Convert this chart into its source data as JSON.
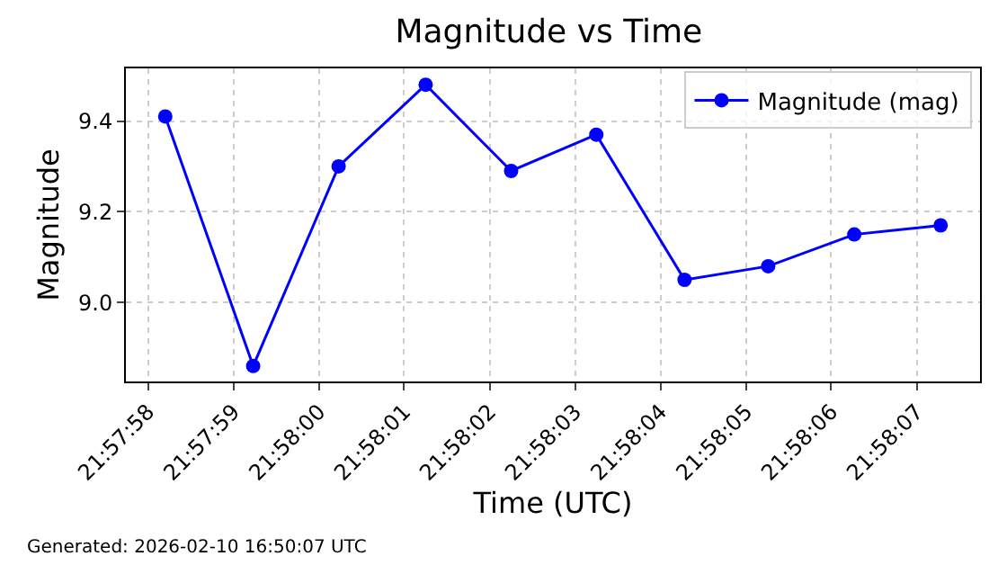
{
  "chart_data": {
    "type": "line",
    "title": "Magnitude vs Time",
    "xlabel": "Time (UTC)",
    "ylabel": "Magnitude",
    "x": [
      21.966167,
      21.966453,
      21.966731,
      21.967014,
      21.967292,
      21.967569,
      21.967856,
      21.968128,
      21.968408,
      21.968689
    ],
    "series": [
      {
        "name": "Magnitude (mag)",
        "color": "#0000ff",
        "values": [
          9.41,
          8.86,
          9.3,
          9.48,
          9.29,
          9.37,
          9.05,
          9.08,
          9.15,
          9.17
        ]
      }
    ],
    "xlim": [
      21.966039,
      21.968817
    ],
    "xticks": [
      {
        "value": 21.966111,
        "label": "21:57:58"
      },
      {
        "value": 21.966389,
        "label": "21:57:59"
      },
      {
        "value": 21.966667,
        "label": "21:58:00"
      },
      {
        "value": 21.966944,
        "label": "21:58:01"
      },
      {
        "value": 21.967222,
        "label": "21:58:02"
      },
      {
        "value": 21.9675,
        "label": "21:58:03"
      },
      {
        "value": 21.967778,
        "label": "21:58:04"
      },
      {
        "value": 21.968056,
        "label": "21:58:05"
      },
      {
        "value": 21.968333,
        "label": "21:58:06"
      },
      {
        "value": 21.968611,
        "label": "21:58:07"
      }
    ],
    "ylim": [
      8.826,
      9.516
    ],
    "yticks": [
      {
        "value": 9,
        "label": "9.0"
      },
      {
        "value": 9.2,
        "label": "9.2"
      },
      {
        "value": 9.4,
        "label": "9.4"
      }
    ],
    "grid": true,
    "legend": "top right",
    "marker": "circle",
    "line_style": "solid",
    "annotations": [
      "Generated: 2026-02-10 16:50:07 UTC"
    ]
  }
}
